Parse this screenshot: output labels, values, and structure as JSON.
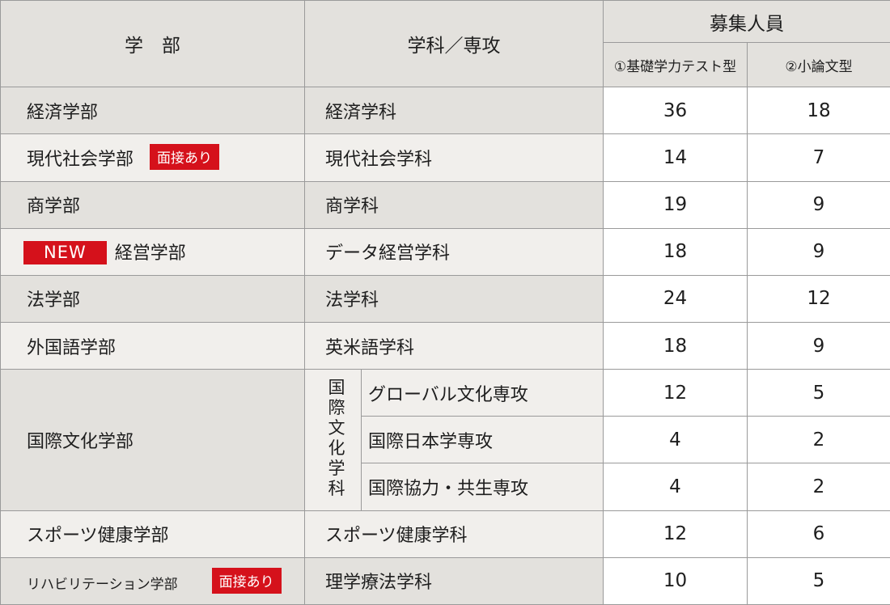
{
  "header": {
    "faculty": "学　部",
    "department": "学科／専攻",
    "recruit": "募集人員",
    "method1": "①基礎学力テスト型",
    "method2": "②小論文型"
  },
  "badges": {
    "interview": "面接あり",
    "new": "NEW"
  },
  "rows": [
    {
      "faculty": "経済学部",
      "department": "経済学科",
      "v1": "36",
      "v2": "18"
    },
    {
      "faculty": "現代社会学部",
      "department": "現代社会学科",
      "v1": "14",
      "v2": "7"
    },
    {
      "faculty": "商学部",
      "department": "商学科",
      "v1": "19",
      "v2": "9"
    },
    {
      "faculty": "経営学部",
      "department": "データ経営学科",
      "v1": "18",
      "v2": "9"
    },
    {
      "faculty": "法学部",
      "department": "法学科",
      "v1": "24",
      "v2": "12"
    },
    {
      "faculty": "外国語学部",
      "department": "英米語学科",
      "v1": "18",
      "v2": "9"
    },
    {
      "faculty": "スポーツ健康学部",
      "department": "スポーツ健康学科",
      "v1": "12",
      "v2": "6"
    },
    {
      "faculty": "リハビリテーション学部",
      "department": "理学療法学科",
      "v1": "10",
      "v2": "5"
    }
  ],
  "international": {
    "faculty": "国際文化学部",
    "department": "国際文化学科",
    "courses": [
      {
        "name": "グローバル文化専攻",
        "v1": "12",
        "v2": "5"
      },
      {
        "name": "国際日本学専攻",
        "v1": "4",
        "v2": "2"
      },
      {
        "name": "国際協力・共生専攻",
        "v1": "4",
        "v2": "2"
      }
    ]
  }
}
